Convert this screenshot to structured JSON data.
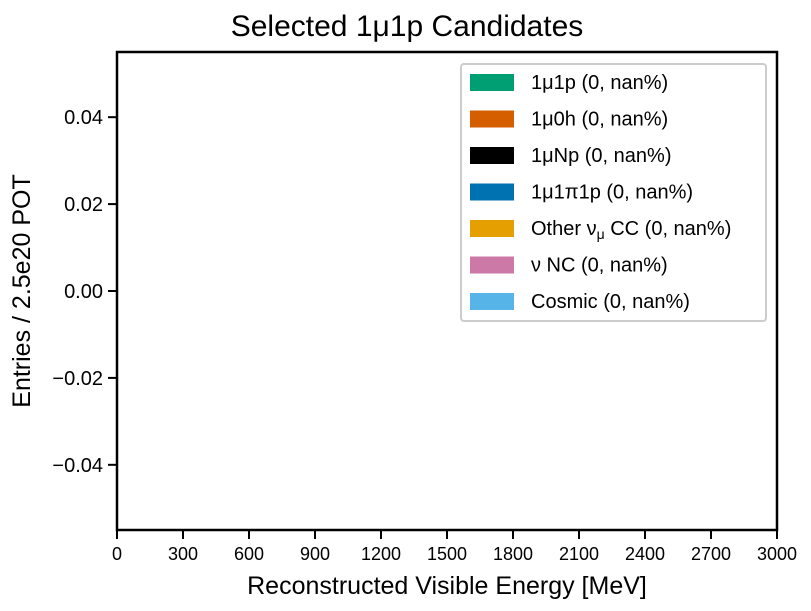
{
  "chart_data": {
    "type": "bar",
    "title": "Selected 1μ1p Candidates",
    "xlabel": "Reconstructed Visible Energy [MeV]",
    "ylabel": "Entries / 2.5e20 POT",
    "xlim": [
      0,
      3000
    ],
    "ylim": [
      -0.055,
      0.055
    ],
    "x_ticks": [
      "0",
      "300",
      "600",
      "900",
      "1200",
      "1500",
      "1800",
      "2100",
      "2400",
      "2700",
      "3000"
    ],
    "y_ticks": [
      {
        "value": 0.04,
        "label": "0.04"
      },
      {
        "value": 0.02,
        "label": "0.02"
      },
      {
        "value": 0.0,
        "label": "0.00"
      },
      {
        "value": -0.02,
        "label": "−0.02"
      },
      {
        "value": -0.04,
        "label": "−0.04"
      }
    ],
    "grid": false,
    "legend_position": "top-right",
    "series": [
      {
        "name": "1μ1p (0, nan%)",
        "color": "#009E73",
        "values": []
      },
      {
        "name": "1μ0h (0, nan%)",
        "color": "#D55E00",
        "values": []
      },
      {
        "name": "1μNp (0, nan%)",
        "color": "#000000",
        "values": []
      },
      {
        "name": "1μ1π1p (0, nan%)",
        "color": "#0072B2",
        "values": []
      },
      {
        "name": "Other ν_μ CC (0, nan%)",
        "color": "#E69F00",
        "values": []
      },
      {
        "name": "ν NC (0, nan%)",
        "color": "#CC79A7",
        "values": []
      },
      {
        "name": "Cosmic (0, nan%)",
        "color": "#56B4E9",
        "values": []
      }
    ]
  }
}
